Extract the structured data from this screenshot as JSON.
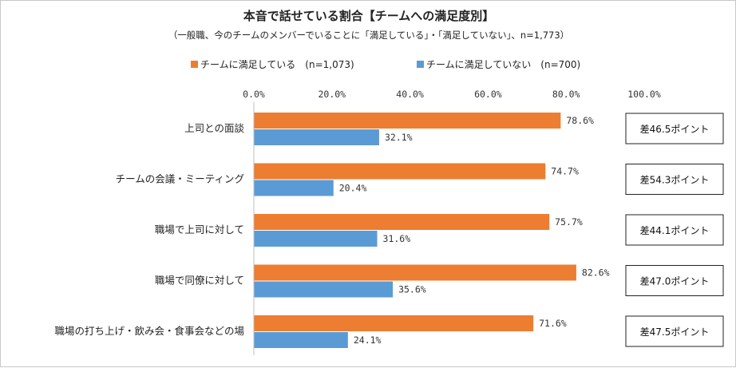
{
  "chart_data": {
    "type": "bar",
    "orientation": "horizontal",
    "title": "本音で話せている割合【チームへの満足度別】",
    "subtitle": "（一般職、今のチームのメンバーでいることに「満足している」・「満足していない」、n=1,773）",
    "categories": [
      "上司との面談",
      "チームの会議・ミーティング",
      "職場で上司に対して",
      "職場で同僚に対して",
      "職場の打ち上げ・飲み会・食事会などの場"
    ],
    "series": [
      {
        "name": "チームに満足している　(n=1,073)",
        "color": "#ED7D31",
        "values": [
          78.6,
          74.7,
          75.7,
          82.6,
          71.6
        ],
        "labels": [
          "78.6%",
          "74.7%",
          "75.7%",
          "82.6%",
          "71.6%"
        ]
      },
      {
        "name": "チームに満足していない　(n=700)",
        "color": "#5B9BD5",
        "values": [
          32.1,
          20.4,
          31.6,
          35.6,
          24.1
        ],
        "labels": [
          "32.1%",
          "20.4%",
          "31.6%",
          "35.6%",
          "24.1%"
        ]
      }
    ],
    "xlim": [
      0,
      100
    ],
    "xticks": [
      0,
      20,
      40,
      60,
      80,
      100
    ],
    "xtick_labels": [
      "0.0%",
      "20.0%",
      "40.0%",
      "60.0%",
      "80.0%",
      "100.0%"
    ],
    "annotations": [
      "差46.5ポイント",
      "差54.3ポイント",
      "差44.1ポイント",
      "差47.0ポイント",
      "差47.5ポイント"
    ],
    "legend_position": "top",
    "grid": false
  }
}
